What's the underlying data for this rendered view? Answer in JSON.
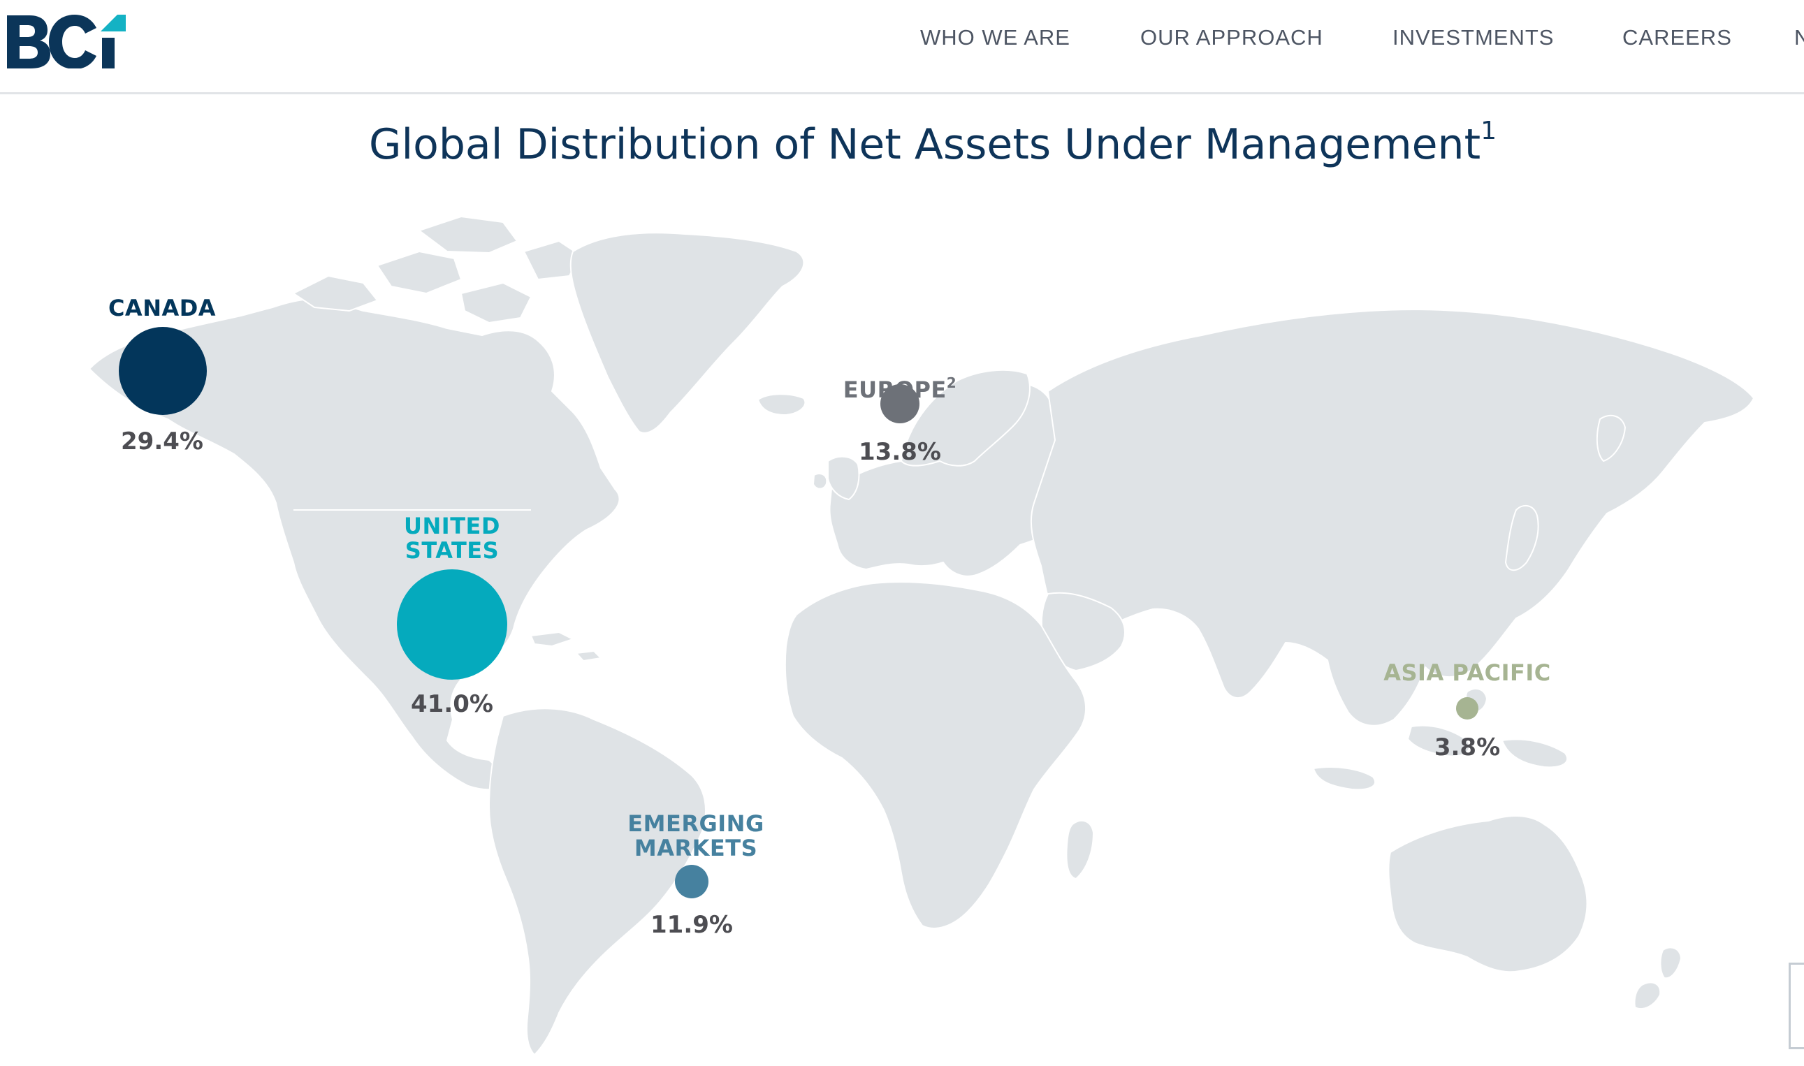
{
  "header": {
    "logo_text": "BCi",
    "nav": [
      {
        "label": "WHO WE ARE"
      },
      {
        "label": "OUR APPROACH"
      },
      {
        "label": "INVESTMENTS"
      },
      {
        "label": "CAREERS"
      },
      {
        "label": "N"
      }
    ]
  },
  "title": {
    "text": "Global Distribution of Net Assets Under Management",
    "footnote": "1"
  },
  "regions": {
    "canada": {
      "label": "CANADA",
      "value": "29.4%",
      "color": "#03365b"
    },
    "united_states": {
      "label": "UNITED\nSTATES",
      "value": "41.0%",
      "color": "#05aabd"
    },
    "europe": {
      "label": "EUROPE",
      "footnote": "2",
      "value": "13.8%",
      "color": "#6d7178"
    },
    "emerging_markets": {
      "label": "EMERGING\nMARKETS",
      "value": "11.9%",
      "color": "#46819f"
    },
    "asia_pacific": {
      "label": "ASIA PACIFIC",
      "value": "3.8%",
      "color": "#a6b492"
    }
  },
  "colors": {
    "land": "#dfe3e6",
    "title": "#0e3459",
    "nav_text": "#4d5563"
  }
}
